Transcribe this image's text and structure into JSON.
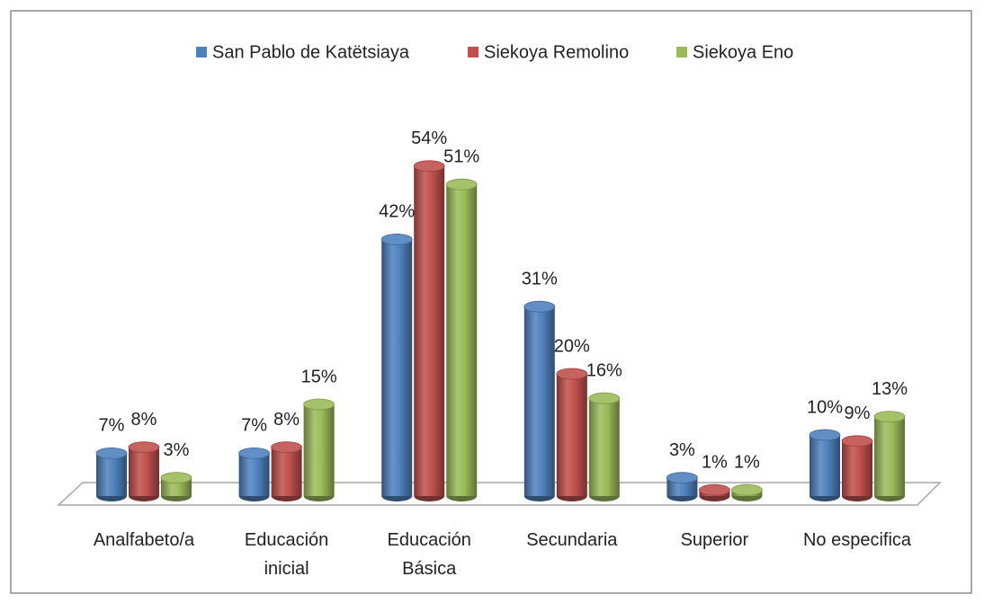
{
  "chart_data": {
    "type": "bar",
    "categories": [
      "Analfabeto/a",
      "Educación inicial",
      "Educación Básica",
      "Secundaria",
      "Superior",
      "No especifica"
    ],
    "series": [
      {
        "name": "San Pablo de Katëtsiaya",
        "color": "#4f81bd",
        "values": [
          7,
          7,
          42,
          31,
          3,
          10
        ],
        "value_labels": [
          "7%",
          "7%",
          "42%",
          "31%",
          "3%",
          "10%"
        ]
      },
      {
        "name": "Siekoya Remolino",
        "color": "#c0504d",
        "values": [
          8,
          8,
          54,
          20,
          1,
          9
        ],
        "value_labels": [
          "8%",
          "8%",
          "54%",
          "20%",
          "1%",
          "9%"
        ]
      },
      {
        "name": "Siekoya Eno",
        "color": "#9bbb59",
        "values": [
          3,
          15,
          51,
          16,
          1,
          13
        ],
        "value_labels": [
          "3%",
          "15%",
          "51%",
          "16%",
          "1%",
          "13%"
        ]
      }
    ],
    "legend": "top"
  }
}
